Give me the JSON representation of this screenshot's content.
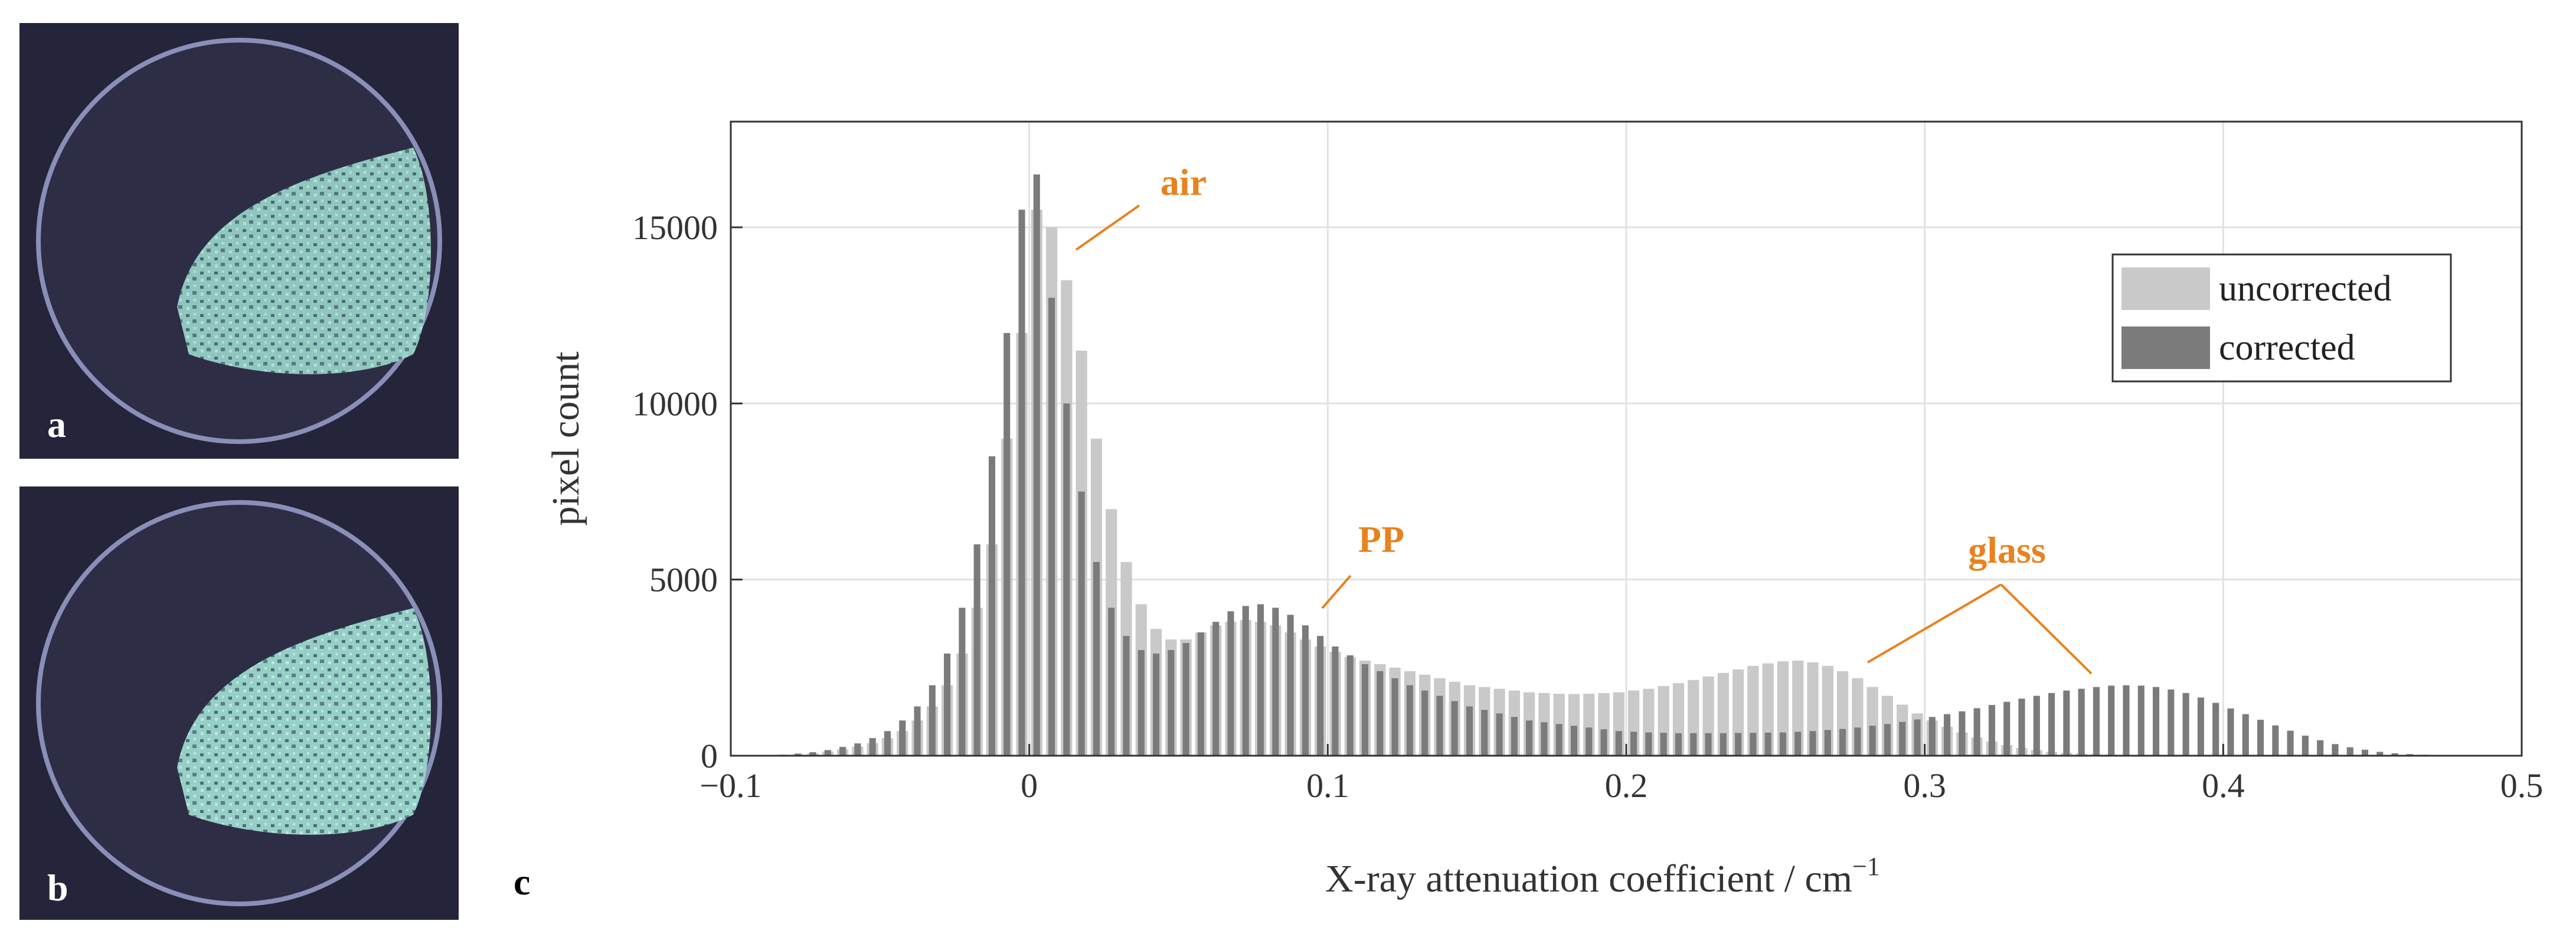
{
  "panel_labels": [
    "a",
    "b",
    "c"
  ],
  "chart_data": {
    "type": "histogram",
    "ylabel": "pixel count",
    "xlabel": {
      "text": "X-ray attenuation coefficient / cm",
      "superscript": "−1"
    },
    "xlim": [
      -0.1,
      0.5
    ],
    "xticks": [
      {
        "value": -0.1,
        "label": "−0.1"
      },
      0,
      0.1,
      0.2,
      0.3,
      0.4,
      0.5
    ],
    "ylim": [
      0,
      18000
    ],
    "yticks": [
      0,
      5000,
      10000,
      15000
    ],
    "grid": true,
    "legend": "upper right",
    "bins": [
      -0.09,
      -0.085,
      -0.08,
      -0.075,
      -0.07,
      -0.065,
      -0.06,
      -0.055,
      -0.05,
      -0.045,
      -0.04,
      -0.035,
      -0.03,
      -0.025,
      -0.02,
      -0.015,
      -0.01,
      -0.005,
      0,
      0.005,
      0.01,
      0.015,
      0.02,
      0.025,
      0.03,
      0.035,
      0.04,
      0.045,
      0.05,
      0.055,
      0.06,
      0.065,
      0.07,
      0.075,
      0.08,
      0.085,
      0.09,
      0.095,
      0.1,
      0.105,
      0.11,
      0.115,
      0.12,
      0.125,
      0.13,
      0.135,
      0.14,
      0.145,
      0.15,
      0.155,
      0.16,
      0.165,
      0.17,
      0.175,
      0.18,
      0.185,
      0.19,
      0.195,
      0.2,
      0.205,
      0.21,
      0.215,
      0.22,
      0.225,
      0.23,
      0.235,
      0.24,
      0.245,
      0.25,
      0.255,
      0.26,
      0.265,
      0.27,
      0.275,
      0.28,
      0.285,
      0.29,
      0.295,
      0.3,
      0.305,
      0.31,
      0.315,
      0.32,
      0.325,
      0.33,
      0.335,
      0.34,
      0.345,
      0.35,
      0.355,
      0.36,
      0.365,
      0.37,
      0.375,
      0.38,
      0.385,
      0.39,
      0.395,
      0.4,
      0.405,
      0.41,
      0.415,
      0.42,
      0.425,
      0.43,
      0.435,
      0.44,
      0.445,
      0.45,
      0.455,
      0.46,
      0.465,
      0.47,
      0.475,
      0.48,
      0.485,
      0.49
    ],
    "series": [
      {
        "name": "uncorrected",
        "color": "#c9c9c9",
        "values": [
          5,
          15,
          40,
          70,
          120,
          180,
          260,
          360,
          500,
          700,
          1000,
          1400,
          2000,
          2900,
          4200,
          6000,
          9000,
          12000,
          15500,
          15000,
          13500,
          11500,
          9000,
          7000,
          5500,
          4300,
          3600,
          3300,
          3300,
          3500,
          3700,
          3800,
          3850,
          3800,
          3700,
          3500,
          3300,
          3100,
          2950,
          2800,
          2700,
          2600,
          2500,
          2400,
          2300,
          2200,
          2100,
          2000,
          1950,
          1900,
          1850,
          1800,
          1780,
          1760,
          1750,
          1760,
          1780,
          1800,
          1850,
          1900,
          1980,
          2060,
          2150,
          2250,
          2350,
          2450,
          2550,
          2620,
          2680,
          2700,
          2650,
          2550,
          2400,
          2200,
          1950,
          1700,
          1450,
          1200,
          1000,
          820,
          660,
          520,
          400,
          300,
          220,
          160,
          110,
          80,
          60,
          45,
          35,
          25,
          18,
          12,
          8,
          5,
          3,
          2,
          1,
          1,
          0,
          0,
          0,
          0,
          0,
          0,
          0,
          0,
          0,
          0,
          0,
          0,
          0,
          0,
          0,
          0
        ]
      },
      {
        "name": "corrected",
        "color": "#7b7b7b",
        "values": [
          10,
          30,
          60,
          100,
          160,
          250,
          350,
          500,
          700,
          1000,
          1400,
          2000,
          2900,
          4200,
          6000,
          8500,
          12000,
          15500,
          16500,
          13000,
          10000,
          7500,
          5500,
          4200,
          3400,
          3000,
          2900,
          3000,
          3200,
          3500,
          3800,
          4100,
          4250,
          4300,
          4200,
          4000,
          3700,
          3400,
          3100,
          2850,
          2600,
          2400,
          2200,
          2000,
          1850,
          1700,
          1550,
          1400,
          1300,
          1200,
          1100,
          1000,
          950,
          900,
          850,
          800,
          750,
          700,
          680,
          660,
          650,
          640,
          640,
          640,
          640,
          645,
          650,
          655,
          660,
          680,
          700,
          730,
          760,
          800,
          850,
          900,
          960,
          1030,
          1100,
          1180,
          1260,
          1350,
          1440,
          1530,
          1620,
          1700,
          1780,
          1850,
          1900,
          1950,
          1990,
          2000,
          1990,
          1950,
          1880,
          1780,
          1650,
          1500,
          1340,
          1180,
          1020,
          860,
          710,
          570,
          440,
          330,
          240,
          170,
          110,
          70,
          45,
          28,
          16,
          9,
          5,
          2
        ]
      }
    ],
    "annotations": [
      "air",
      "PP",
      "glass"
    ]
  }
}
